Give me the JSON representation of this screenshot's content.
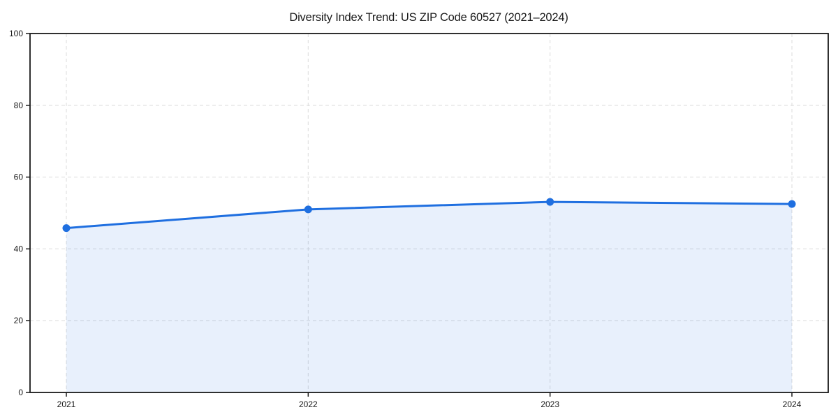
{
  "title": "Diversity Index Trend: US ZIP Code 60527 (2021–2024)",
  "chart_data": {
    "type": "line",
    "title": "Diversity Index Trend: US ZIP Code 60527 (2021–2024)",
    "x": [
      "2021",
      "2022",
      "2023",
      "2024"
    ],
    "series": [
      {
        "name": "Diversity Index",
        "values": [
          45.8,
          51.0,
          53.1,
          52.5
        ]
      }
    ],
    "xlabel": "",
    "ylabel": "",
    "ylim": [
      0,
      100
    ],
    "yticks": [
      0,
      20,
      40,
      60,
      80,
      100
    ],
    "grid": true,
    "grid_style": "dashed",
    "legend_position": "none",
    "area_fill": true,
    "marker": "circle",
    "colors": {
      "line": "#1f6fe0",
      "marker": "#1f6fe0",
      "fill": "#1f6fe0",
      "fill_opacity": 0.1,
      "grid": "#dedede",
      "axis": "#1a1a1a",
      "text": "#1a1a1a",
      "background": "#ffffff"
    }
  }
}
